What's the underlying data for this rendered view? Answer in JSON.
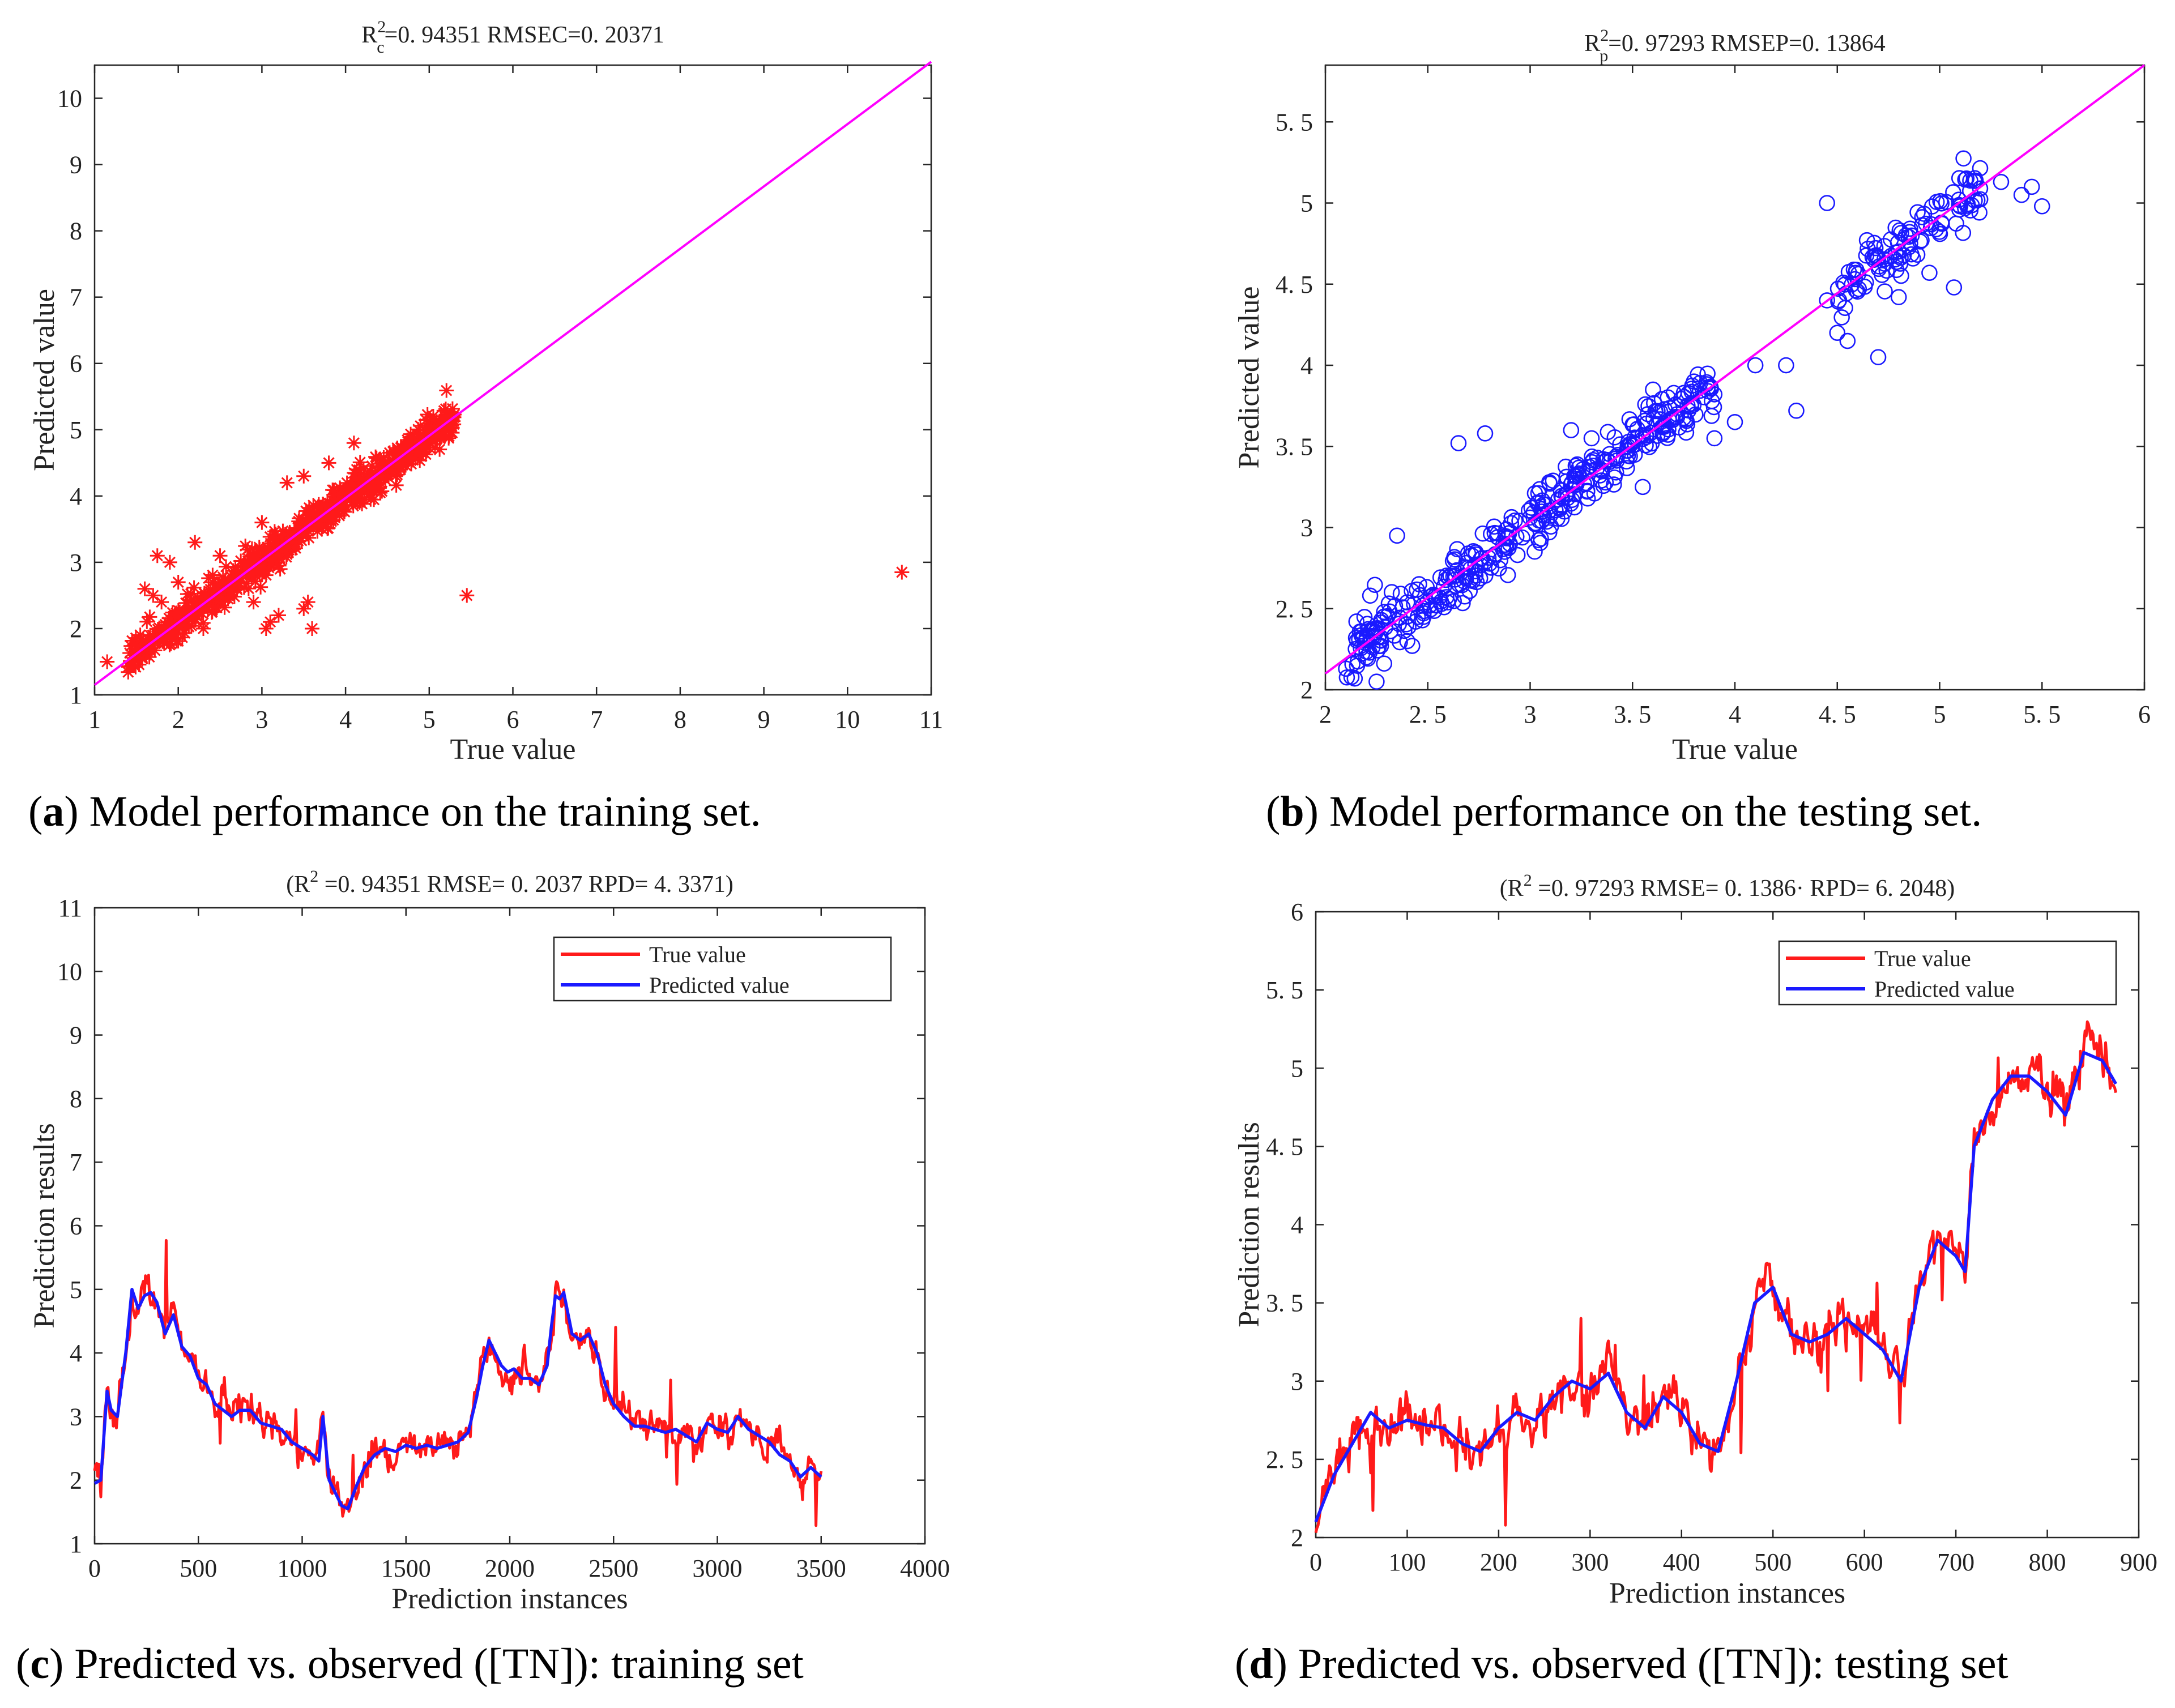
{
  "figure": {
    "captions": [
      {
        "letter": "a",
        "text": " Model performance on the training set."
      },
      {
        "letter": "b",
        "text": " Model performance on the testing set."
      },
      {
        "letter": "c",
        "text": " Predicted vs. observed ([TN]): training set"
      },
      {
        "letter": "d",
        "text": " Predicted vs. observed ([TN]): testing set"
      }
    ]
  },
  "colors": {
    "red": "#ff1a1a",
    "blue": "#1a1aff",
    "magenta": "#ff00ff",
    "axis": "#262626"
  },
  "chart_data": [
    {
      "id": "a",
      "type": "scatter",
      "title": {
        "r": "R",
        "sup": "2",
        "sub": "c",
        "rest": "=0. 94351   RMSEC=0. 20371"
      },
      "xlabel": "True value",
      "ylabel": "Predicted value",
      "xlim": [
        1,
        11
      ],
      "ylim": [
        1,
        10.5
      ],
      "xticks": [
        1,
        2,
        3,
        4,
        5,
        6,
        7,
        8,
        9,
        10,
        11
      ],
      "yticks": [
        1,
        2,
        3,
        4,
        5,
        6,
        7,
        8,
        9,
        10
      ],
      "marker": "asterisk",
      "color": "red",
      "reference_line": {
        "from": [
          1,
          1.15
        ],
        "to": [
          11,
          10.55
        ]
      },
      "generated_points": {
        "seed": 7,
        "count": 700,
        "x_range": [
          1.4,
          5.3
        ],
        "noise": 0.13
      },
      "points": [
        [
          10.65,
          2.85
        ],
        [
          5.45,
          2.5
        ],
        [
          1.15,
          1.5
        ],
        [
          1.75,
          3.1
        ],
        [
          1.9,
          3.0
        ],
        [
          2.2,
          3.3
        ],
        [
          3.05,
          2.0
        ],
        [
          3.1,
          2.1
        ],
        [
          3.2,
          2.2
        ],
        [
          3.55,
          2.4
        ],
        [
          3.6,
          2.0
        ],
        [
          3.5,
          2.3
        ],
        [
          3.3,
          4.2
        ],
        [
          3.0,
          3.6
        ],
        [
          4.1,
          4.8
        ],
        [
          3.8,
          4.5
        ],
        [
          1.6,
          2.6
        ],
        [
          1.8,
          2.4
        ],
        [
          2.0,
          2.7
        ],
        [
          2.5,
          3.1
        ],
        [
          4.3,
          3.95
        ],
        [
          4.6,
          4.3
        ],
        [
          4.9,
          4.6
        ],
        [
          2.9,
          2.4
        ],
        [
          3.5,
          4.3
        ],
        [
          1.5,
          1.7
        ],
        [
          1.7,
          2.5
        ],
        [
          2.3,
          2.0
        ]
      ]
    },
    {
      "id": "b",
      "type": "scatter",
      "title": {
        "r": "R",
        "sup": "2",
        "sub": "p",
        "rest": "=0. 97293   RMSEP=0. 13864"
      },
      "xlabel": "True value",
      "ylabel": "Predicted value",
      "xlim": [
        2,
        6
      ],
      "ylim": [
        2,
        5.85
      ],
      "xticks": [
        "2",
        "2. 5",
        "3",
        "3. 5",
        "4",
        "4. 5",
        "5",
        "5. 5",
        "6"
      ],
      "xtick_values": [
        2,
        2.5,
        3,
        3.5,
        4,
        4.5,
        5,
        5.5,
        6
      ],
      "yticks": [
        "2",
        "2. 5",
        "3",
        "3. 5",
        "4",
        "4. 5",
        "5",
        "5. 5"
      ],
      "ytick_values": [
        2,
        2.5,
        3,
        3.5,
        4,
        4.5,
        5,
        5.5
      ],
      "marker": "circle",
      "color": "blue",
      "reference_line": {
        "from": [
          2,
          2.1
        ],
        "to": [
          6,
          5.85
        ]
      },
      "generated_points": {
        "seed": 11,
        "clusters": [
          {
            "count": 380,
            "x_range": [
              2.1,
              3.9
            ],
            "noise": 0.09
          },
          {
            "count": 110,
            "x_range": [
              4.5,
              5.2
            ],
            "noise": 0.09
          }
        ]
      },
      "points": [
        [
          2.65,
          3.52
        ],
        [
          2.78,
          3.58
        ],
        [
          2.35,
          2.95
        ],
        [
          4.3,
          3.72
        ],
        [
          4.25,
          4.0
        ],
        [
          4.1,
          4.0
        ],
        [
          4.45,
          5.0
        ],
        [
          4.45,
          4.4
        ],
        [
          4.5,
          4.2
        ],
        [
          4.55,
          4.15
        ],
        [
          4.7,
          4.05
        ],
        [
          4.8,
          4.42
        ],
        [
          5.07,
          4.48
        ],
        [
          4.95,
          4.57
        ],
        [
          5.3,
          5.13
        ],
        [
          5.45,
          5.1
        ],
        [
          5.5,
          4.98
        ],
        [
          5.4,
          5.05
        ],
        [
          3.3,
          3.55
        ],
        [
          3.2,
          3.6
        ],
        [
          3.6,
          3.85
        ],
        [
          3.9,
          3.55
        ],
        [
          4.0,
          3.65
        ],
        [
          2.2,
          2.2
        ],
        [
          2.25,
          2.05
        ],
        [
          2.4,
          2.3
        ],
        [
          3.55,
          3.25
        ],
        [
          3.8,
          3.9
        ]
      ]
    },
    {
      "id": "c",
      "type": "line",
      "title": {
        "pre": "(R",
        "sup": "2",
        "rest": " =0. 94351 RMSE= 0. 2037 RPD= 4. 3371)"
      },
      "xlabel": "Prediction instances",
      "ylabel": "Prediction results",
      "xlim": [
        0,
        4000
      ],
      "ylim": [
        1,
        11
      ],
      "xticks": [
        0,
        500,
        1000,
        1500,
        2000,
        2500,
        3000,
        3500,
        4000
      ],
      "yticks": [
        1,
        2,
        3,
        4,
        5,
        6,
        7,
        8,
        9,
        10,
        11
      ],
      "legend": [
        "True value",
        "Predicted value"
      ],
      "legend_position": "top-right",
      "series": [
        {
          "name": "Predicted value",
          "color": "blue",
          "x": [
            0,
            30,
            60,
            80,
            110,
            150,
            180,
            210,
            240,
            270,
            300,
            340,
            380,
            420,
            460,
            500,
            540,
            580,
            620,
            660,
            700,
            750,
            800,
            850,
            900,
            950,
            1000,
            1050,
            1080,
            1100,
            1130,
            1160,
            1190,
            1220,
            1260,
            1300,
            1350,
            1400,
            1450,
            1500,
            1550,
            1600,
            1650,
            1700,
            1750,
            1800,
            1840,
            1870,
            1900,
            1930,
            1960,
            1990,
            2020,
            2060,
            2100,
            2140,
            2180,
            2200,
            2220,
            2240,
            2260,
            2300,
            2340,
            2380,
            2420,
            2460,
            2500,
            2550,
            2600,
            2650,
            2700,
            2750,
            2800,
            2850,
            2900,
            2950,
            3000,
            3050,
            3100,
            3150,
            3200,
            3250,
            3300,
            3350,
            3400,
            3450,
            3500
          ],
          "values": [
            1.95,
            2.0,
            3.4,
            3.1,
            3.0,
            4.0,
            5.0,
            4.7,
            4.9,
            4.95,
            4.8,
            4.3,
            4.6,
            4.1,
            3.95,
            3.6,
            3.5,
            3.2,
            3.1,
            3.0,
            3.1,
            3.1,
            2.9,
            2.85,
            2.8,
            2.6,
            2.5,
            2.4,
            2.3,
            3.0,
            2.0,
            1.8,
            1.6,
            1.55,
            1.9,
            2.2,
            2.4,
            2.5,
            2.45,
            2.55,
            2.5,
            2.55,
            2.5,
            2.55,
            2.6,
            2.75,
            3.3,
            3.8,
            4.2,
            4.0,
            3.8,
            3.7,
            3.75,
            3.6,
            3.6,
            3.5,
            3.8,
            4.4,
            4.9,
            4.85,
            4.95,
            4.3,
            4.2,
            4.3,
            4.0,
            3.5,
            3.2,
            3.0,
            2.85,
            2.85,
            2.8,
            2.75,
            2.8,
            2.7,
            2.6,
            2.9,
            2.8,
            2.75,
            3.0,
            2.8,
            2.7,
            2.6,
            2.4,
            2.3,
            2.05,
            2.2,
            2.05
          ]
        },
        {
          "name": "True value",
          "color": "red",
          "derived_from": "Predicted value",
          "seed": 19,
          "noise": 0.17
        }
      ]
    },
    {
      "id": "d",
      "type": "line",
      "title": {
        "pre": "(R",
        "sup": "2",
        "rest": " =0. 97293 RMSE= 0. 1386· RPD= 6. 2048)"
      },
      "xlabel": "Prediction instances",
      "ylabel": "Prediction results",
      "xlim": [
        0,
        900
      ],
      "ylim": [
        2,
        6
      ],
      "xticks": [
        "0",
        "100",
        "200",
        "300",
        "400",
        "500",
        "600",
        "700",
        "800",
        "900"
      ],
      "xtick_values": [
        0,
        100,
        200,
        300,
        400,
        500,
        600,
        700,
        800,
        900
      ],
      "yticks": [
        "2",
        "2. 5",
        "3",
        "3. 5",
        "4",
        "4. 5",
        "5",
        "5. 5",
        "6"
      ],
      "ytick_values": [
        2,
        2.5,
        3,
        3.5,
        4,
        4.5,
        5,
        5.5,
        6
      ],
      "legend": [
        "True value",
        "Predicted value"
      ],
      "legend_position": "top-right",
      "series": [
        {
          "name": "Predicted value",
          "color": "blue",
          "x": [
            0,
            20,
            40,
            60,
            80,
            100,
            120,
            140,
            160,
            180,
            200,
            220,
            240,
            260,
            280,
            300,
            320,
            340,
            360,
            380,
            400,
            420,
            440,
            460,
            480,
            500,
            520,
            540,
            560,
            580,
            600,
            620,
            640,
            660,
            680,
            700,
            710,
            720,
            740,
            760,
            780,
            800,
            820,
            840,
            860,
            875
          ],
          "values": [
            2.1,
            2.4,
            2.6,
            2.8,
            2.7,
            2.75,
            2.72,
            2.7,
            2.6,
            2.55,
            2.7,
            2.8,
            2.75,
            2.9,
            3.0,
            2.95,
            3.05,
            2.8,
            2.7,
            2.9,
            2.8,
            2.6,
            2.55,
            3.0,
            3.5,
            3.6,
            3.3,
            3.25,
            3.3,
            3.4,
            3.3,
            3.2,
            3.0,
            3.6,
            3.9,
            3.8,
            3.7,
            4.5,
            4.8,
            4.95,
            4.95,
            4.85,
            4.7,
            5.1,
            5.05,
            4.9
          ]
        },
        {
          "name": "True value",
          "color": "red",
          "derived_from": "Predicted value",
          "seed": 23,
          "noise": 0.09
        }
      ]
    }
  ]
}
